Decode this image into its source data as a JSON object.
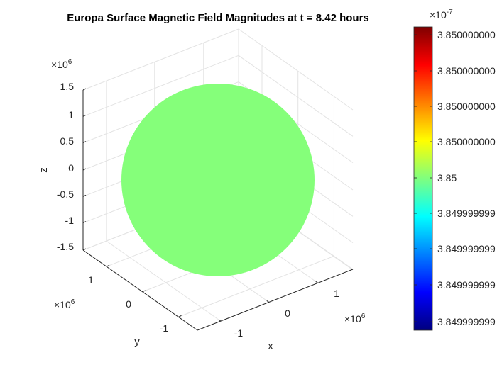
{
  "chart_data": {
    "type": "surface3d",
    "title": "Europa Surface Magnetic Field Magnitudes at t = 8.42 hours",
    "xlabel": "x",
    "ylabel": "y",
    "zlabel": "z",
    "axis_multiplier": "×10",
    "axis_exponent": "6",
    "x_ticks": [
      "-1",
      "0",
      "1"
    ],
    "y_ticks": [
      "-1",
      "0",
      "1"
    ],
    "z_ticks": [
      "-1.5",
      "-1",
      "-0.5",
      "0",
      "0.5",
      "1",
      "1.5"
    ],
    "sphere": {
      "radius": 1560000.0,
      "center": [
        0,
        0,
        0
      ],
      "value": 3.85e-07,
      "color": "#85ff7a"
    },
    "grid": true,
    "colorbar": {
      "colormap": "jet",
      "exponent_base": "×10",
      "exponent": "-7",
      "location": "right",
      "tick_labels": [
        "3.850000000",
        "3.850000000",
        "3.850000000",
        "3.850000000",
        "3.85",
        "3.849999999",
        "3.849999999",
        "3.849999999",
        "3.849999999"
      ]
    }
  }
}
